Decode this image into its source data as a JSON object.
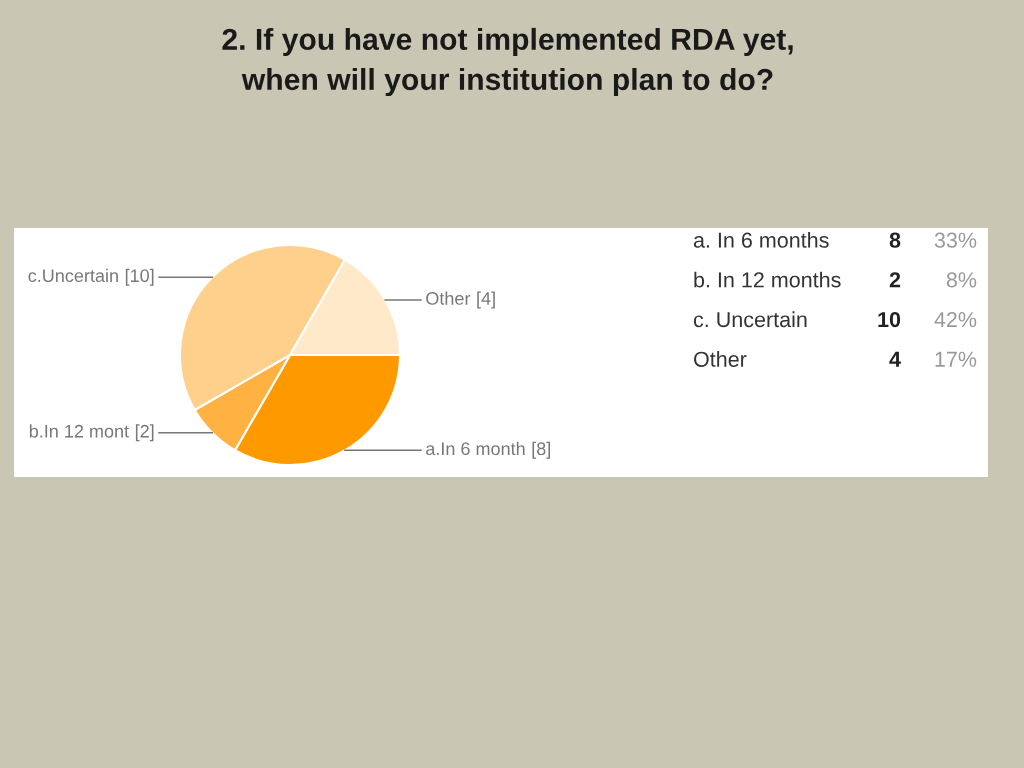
{
  "chart_data": [
    {
      "type": "pie",
      "title": "2. If you have not implemented RDA yet,\nwhen will your institution plan to do?",
      "categories": [
        "a.In 6 month",
        "b.In 12 mont",
        "c.Uncertain",
        "Other"
      ],
      "values": [
        8,
        2,
        10,
        4
      ],
      "colors": [
        "#ff9900",
        "#ffb142",
        "#ffd08b",
        "#ffe9c9"
      ],
      "value_labels": [
        "[8]",
        "[2]",
        "[10]",
        "[4]"
      ]
    },
    {
      "type": "other",
      "annotations": [
        "a. In 6 months",
        "8",
        "33%",
        "b. In 12 months",
        "2",
        "8%",
        "c. Uncertain",
        "10",
        "42%",
        "Other",
        "4",
        "17%"
      ]
    }
  ]
}
